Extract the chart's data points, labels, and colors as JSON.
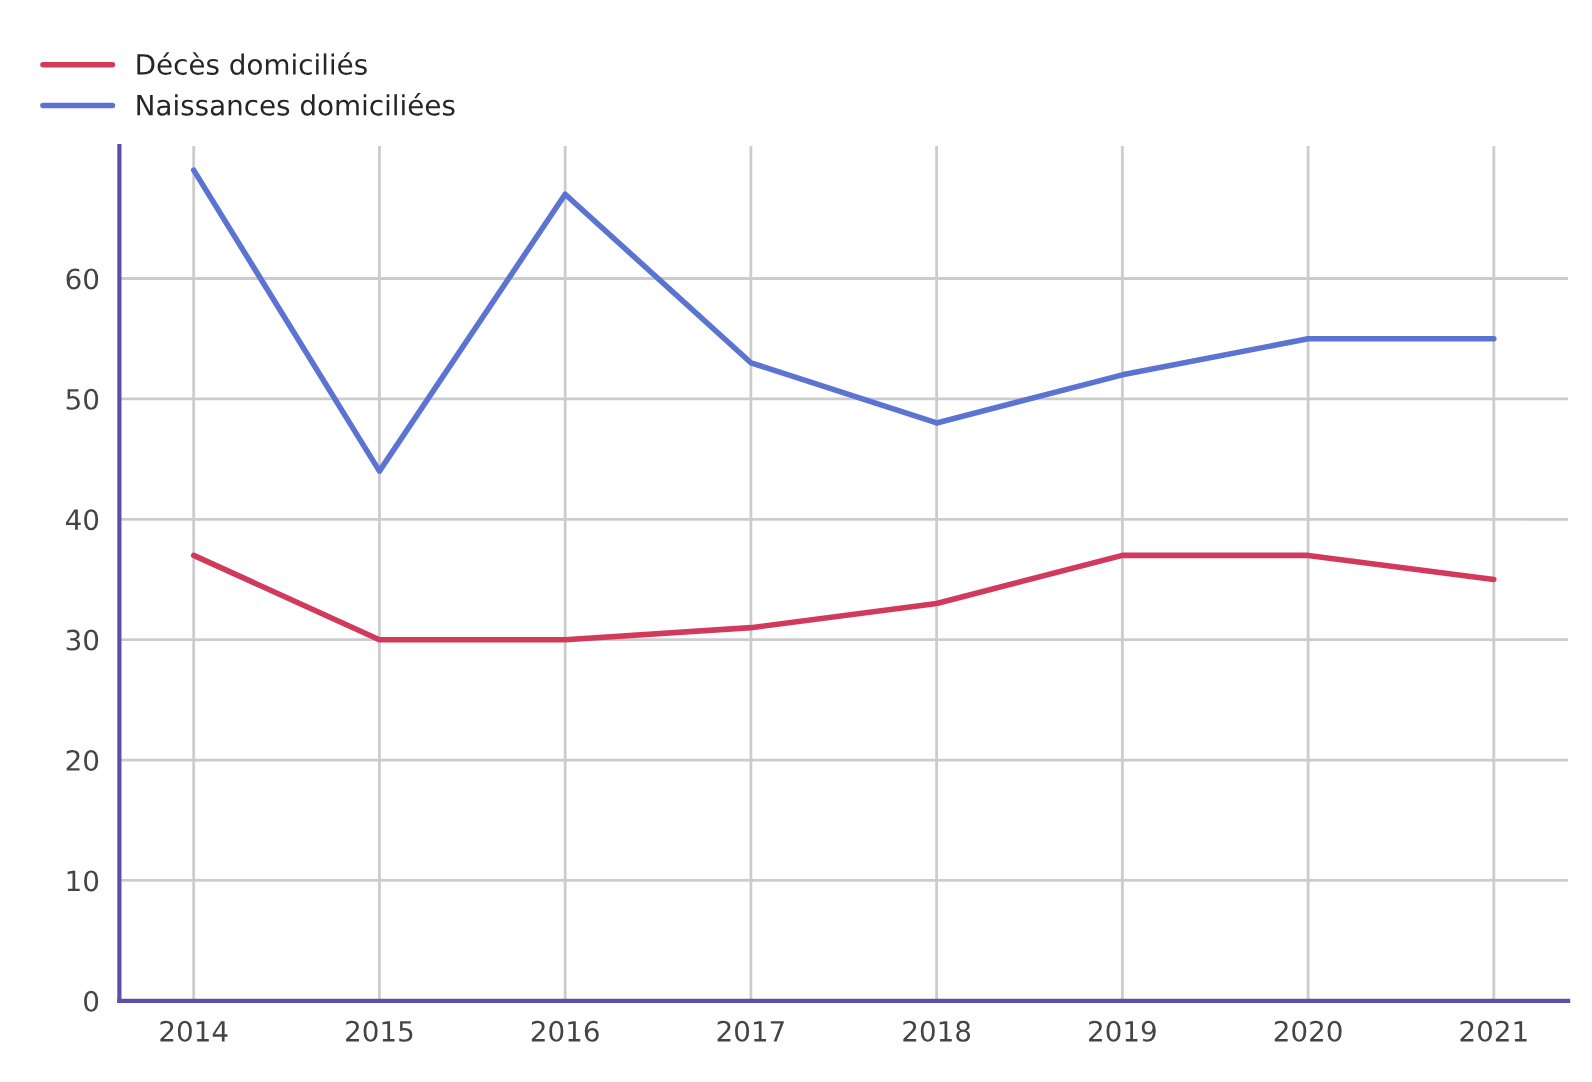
{
  "chart_data": {
    "type": "line",
    "categories": [
      "2014",
      "2015",
      "2016",
      "2017",
      "2018",
      "2019",
      "2020",
      "2021"
    ],
    "series": [
      {
        "name": "Décès domiciliés",
        "color": "#d13a5a",
        "values": [
          37,
          30,
          30,
          31,
          33,
          37,
          37,
          35
        ]
      },
      {
        "name": "Naissances domiciliées",
        "color": "#5b73d1",
        "values": [
          69,
          44,
          67,
          53,
          48,
          52,
          55,
          55
        ]
      }
    ],
    "ylim": [
      0,
      71
    ],
    "yticks": [
      0,
      10,
      20,
      30,
      40,
      50,
      60
    ],
    "grid": true,
    "legend": "top left"
  }
}
